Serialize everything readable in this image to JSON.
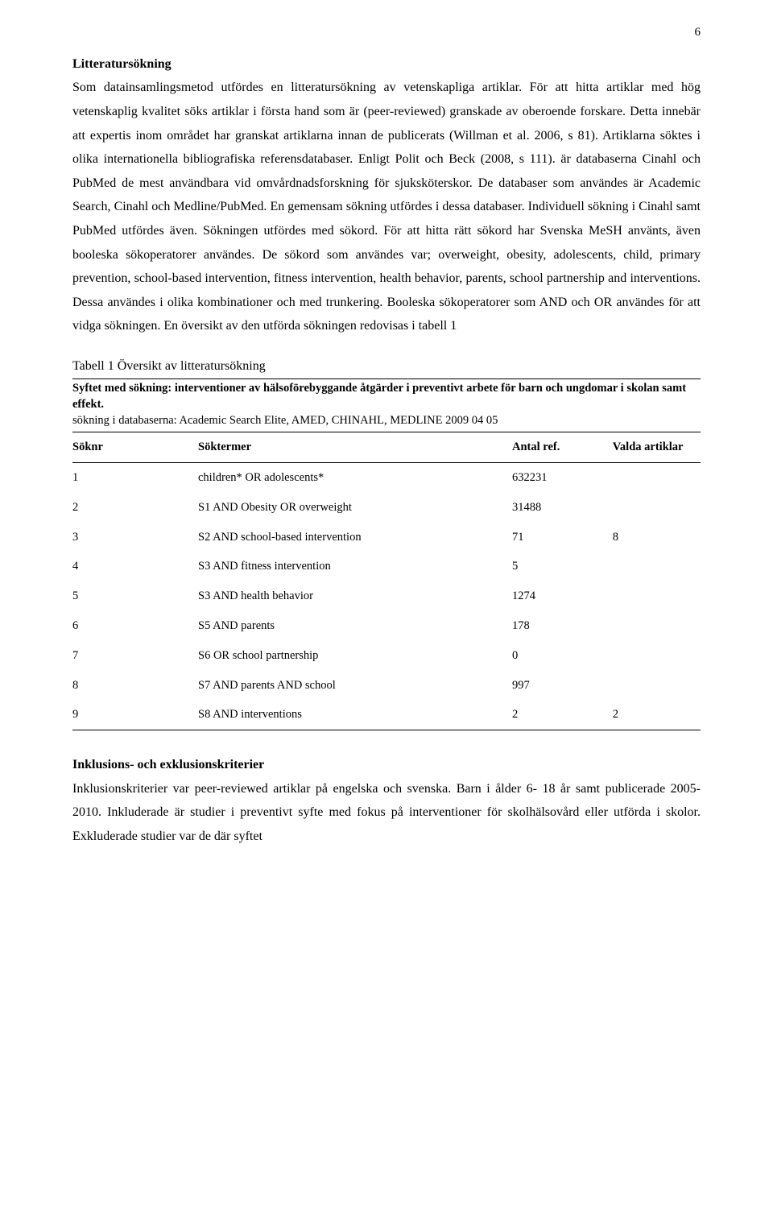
{
  "page_number": "6",
  "section1_heading": "Litteratursökning",
  "section1_body": "Som datainsamlingsmetod utfördes en litteratursökning av vetenskapliga artiklar. För att hitta artiklar med hög vetenskaplig kvalitet söks artiklar i första hand som är (peer-reviewed) granskade av oberoende forskare. Detta innebär att expertis inom området har granskat artiklarna innan de publicerats (Willman et al. 2006, s 81). Artiklarna söktes i olika internationella bibliografiska referensdatabaser. Enligt Polit och Beck (2008, s 111). är databaserna Cinahl och PubMed de mest användbara vid omvårdnadsforskning för sjuksköterskor. De databaser som användes är Academic Search, Cinahl och Medline/PubMed. En gemensam sökning utfördes i dessa databaser. Individuell sökning i Cinahl samt PubMed utfördes även. Sökningen utfördes med sökord. För att hitta rätt sökord har Svenska MeSH använts, även booleska sökoperatorer användes. De sökord som användes var; overweight, obesity, adolescents, child, primary prevention, school-based intervention, fitness intervention, health behavior, parents, school partnership and interventions. Dessa användes i olika kombinationer och med trunkering. Booleska sökoperatorer som AND och OR användes för att vidga sökningen. En översikt av den utförda sökningen redovisas i tabell 1",
  "table_caption": "Tabell 1 Översikt av litteratursökning",
  "table_purpose_bold": "Syftet med sökning: interventioner av hälsoförebyggande åtgärder i preventivt arbete för barn och ungdomar i skolan samt effekt.",
  "table_purpose_rest": "sökning i databaserna: Academic Search Elite, AMED, CHINAHL, MEDLINE 2009 04 05",
  "table": {
    "columns": [
      "Söknr",
      "Söktermer",
      "Antal ref.",
      "Valda artiklar"
    ],
    "rows": [
      [
        "1",
        "children* OR adolescents*",
        "632231",
        ""
      ],
      [
        "2",
        "S1 AND Obesity OR overweight",
        "31488",
        ""
      ],
      [
        "3",
        "S2 AND school-based intervention",
        "71",
        "8"
      ],
      [
        "4",
        "S3 AND fitness intervention",
        "5",
        ""
      ],
      [
        "5",
        "S3 AND health behavior",
        "1274",
        ""
      ],
      [
        "6",
        "S5 AND parents",
        "178",
        ""
      ],
      [
        "7",
        "S6  OR school partnership",
        "0",
        ""
      ],
      [
        "8",
        "S7 AND parents AND school",
        "997",
        ""
      ],
      [
        "9",
        "S8 AND interventions",
        "2",
        "2"
      ]
    ]
  },
  "section2_heading": "Inklusions- och exklusionskriterier",
  "section2_body": "Inklusionskriterier var peer-reviewed artiklar på engelska och svenska. Barn i ålder 6- 18 år samt publicerade 2005- 2010. Inkluderade är studier i preventivt syfte med fokus på interventioner för skolhälsovård eller utförda i skolor. Exkluderade studier var de där syftet"
}
